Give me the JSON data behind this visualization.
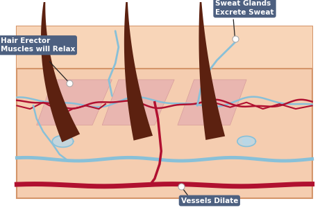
{
  "bg_color": "#ffffff",
  "skin_bg": "#f5cdb0",
  "skin_top": "#f0c8a8",
  "skin_border": "#d4956a",
  "hair_color": "#5c2110",
  "erector_color": "#e8b4b0",
  "erector_edge": "#d49898",
  "vessel_red": "#b01030",
  "vessel_blue": "#88c0d8",
  "sweat_fill": "#b8d8e8",
  "label_bg": "#4d6080",
  "label_text": "#ffffff",
  "title_top": "Sweat Glands\nExcrete Sweat",
  "title_left": "Hair Erector\nMuscles will Relax",
  "title_bottom": "Vessels Dilate",
  "xlim": [
    0,
    10
  ],
  "ylim": [
    0,
    6.4
  ]
}
